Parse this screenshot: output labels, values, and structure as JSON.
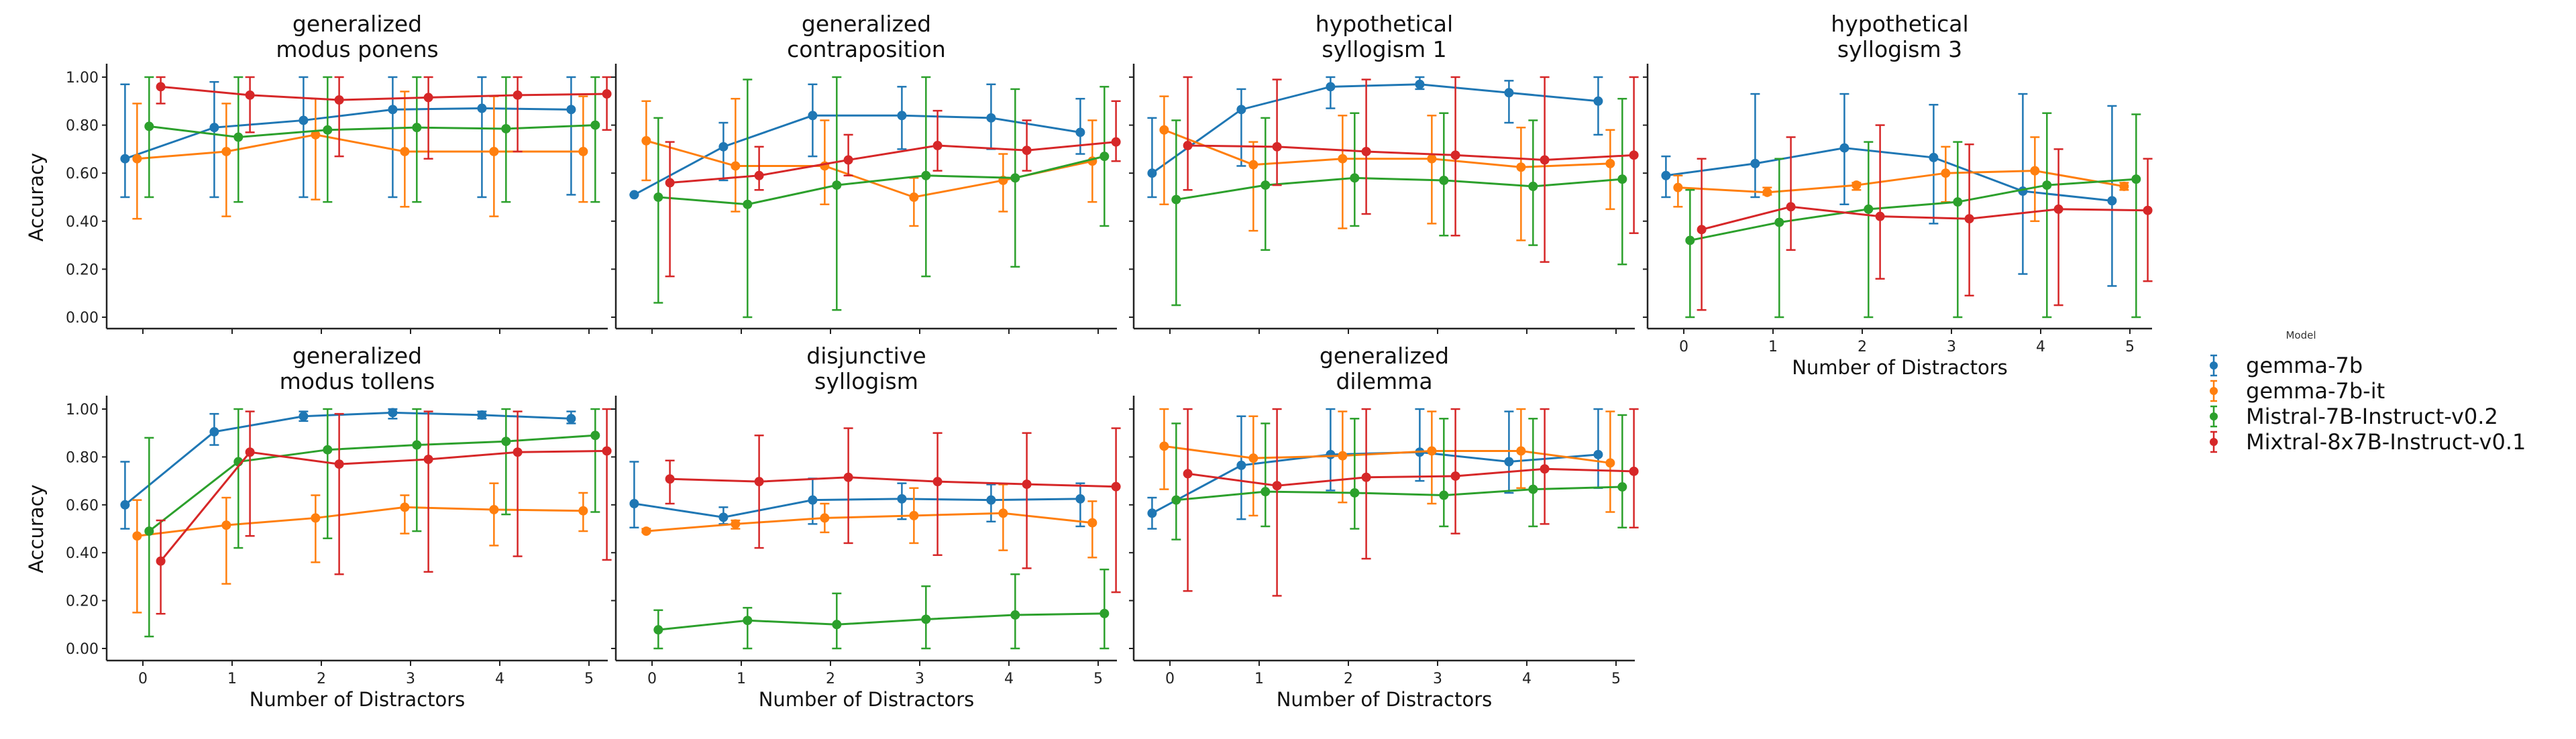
{
  "chart_data": {
    "type": "line",
    "subplots_layout": "2 rows x 4 columns, shared axes",
    "xlabel": "Number of Distractors",
    "ylabel": "Accuracy",
    "x": [
      0,
      1,
      2,
      3,
      4,
      5
    ],
    "xticks": [
      "0",
      "1",
      "2",
      "3",
      "4",
      "5"
    ],
    "yticks": [
      "0.00",
      "0.20",
      "0.40",
      "0.60",
      "0.80",
      "1.00"
    ],
    "ylim": [
      0,
      1
    ],
    "grid": false,
    "error_bars": true,
    "legend": {
      "title": "Model",
      "placement": "right",
      "entries": [
        {
          "name": "gemma-7b",
          "color": "#1f77b4"
        },
        {
          "name": "gemma-7b-it",
          "color": "#ff7f0e"
        },
        {
          "name": "Mistral-7B-Instruct-v0.2",
          "color": "#2ca02c"
        },
        {
          "name": "Mixtral-8x7B-Instruct-v0.1",
          "color": "#d62728"
        }
      ]
    },
    "panels": [
      {
        "title": [
          "generalized",
          "modus ponens"
        ],
        "series": [
          {
            "name": "gemma-7b",
            "mean": [
              0.66,
              0.79,
              0.82,
              0.865,
              0.87,
              0.865
            ],
            "low": [
              0.5,
              0.5,
              0.5,
              0.5,
              0.5,
              0.51
            ],
            "high": [
              0.97,
              0.98,
              1.0,
              1.0,
              1.0,
              1.0
            ]
          },
          {
            "name": "gemma-7b-it",
            "mean": [
              0.66,
              0.69,
              0.76,
              0.69,
              0.69,
              0.69
            ],
            "low": [
              0.41,
              0.42,
              0.49,
              0.46,
              0.42,
              0.48
            ],
            "high": [
              0.89,
              0.89,
              0.91,
              0.94,
              0.92,
              0.92
            ]
          },
          {
            "name": "Mistral-7B-Instruct-v0.2",
            "mean": [
              0.795,
              0.75,
              0.78,
              0.79,
              0.785,
              0.8
            ],
            "low": [
              0.5,
              0.48,
              0.48,
              0.48,
              0.48,
              0.48
            ],
            "high": [
              1.0,
              1.0,
              1.0,
              1.0,
              1.0,
              1.0
            ]
          },
          {
            "name": "Mixtral-8x7B-Instruct-v0.1",
            "mean": [
              0.96,
              0.925,
              0.905,
              0.915,
              0.925,
              0.93
            ],
            "low": [
              0.89,
              0.77,
              0.67,
              0.66,
              0.69,
              0.78
            ],
            "high": [
              1.0,
              1.0,
              1.0,
              1.0,
              1.0,
              1.0
            ]
          }
        ]
      },
      {
        "title": [
          "generalized",
          "contraposition"
        ],
        "series": [
          {
            "name": "gemma-7b",
            "mean": [
              0.51,
              0.71,
              0.84,
              0.84,
              0.83,
              0.77
            ],
            "low": [
              0.51,
              0.57,
              0.67,
              0.7,
              0.7,
              0.68
            ],
            "high": [
              0.51,
              0.81,
              0.97,
              0.96,
              0.97,
              0.91
            ]
          },
          {
            "name": "gemma-7b-it",
            "mean": [
              0.735,
              0.63,
              0.63,
              0.5,
              0.57,
              0.65
            ],
            "low": [
              0.57,
              0.44,
              0.47,
              0.38,
              0.44,
              0.48
            ],
            "high": [
              0.9,
              0.91,
              0.82,
              0.58,
              0.68,
              0.82
            ]
          },
          {
            "name": "Mistral-7B-Instruct-v0.2",
            "mean": [
              0.5,
              0.47,
              0.55,
              0.59,
              0.58,
              0.67
            ],
            "low": [
              0.06,
              0.0,
              0.03,
              0.17,
              0.21,
              0.38
            ],
            "high": [
              0.83,
              0.99,
              1.0,
              1.0,
              0.95,
              0.96
            ]
          },
          {
            "name": "Mixtral-8x7B-Instruct-v0.1",
            "mean": [
              0.56,
              0.59,
              0.655,
              0.715,
              0.695,
              0.73
            ],
            "low": [
              0.17,
              0.53,
              0.59,
              0.61,
              0.61,
              0.65
            ],
            "high": [
              0.73,
              0.71,
              0.76,
              0.86,
              0.82,
              0.9
            ]
          }
        ]
      },
      {
        "title": [
          "hypothetical",
          "syllogism 1"
        ],
        "series": [
          {
            "name": "gemma-7b",
            "mean": [
              0.6,
              0.865,
              0.96,
              0.97,
              0.935,
              0.9
            ],
            "low": [
              0.5,
              0.63,
              0.87,
              0.95,
              0.81,
              0.76
            ],
            "high": [
              0.83,
              0.95,
              1.0,
              1.0,
              0.985,
              1.0
            ]
          },
          {
            "name": "gemma-7b-it",
            "mean": [
              0.78,
              0.635,
              0.66,
              0.66,
              0.625,
              0.64
            ],
            "low": [
              0.47,
              0.36,
              0.37,
              0.39,
              0.32,
              0.45
            ],
            "high": [
              0.92,
              0.73,
              0.84,
              0.84,
              0.79,
              0.78
            ]
          },
          {
            "name": "Mistral-7B-Instruct-v0.2",
            "mean": [
              0.49,
              0.55,
              0.58,
              0.57,
              0.545,
              0.575
            ],
            "low": [
              0.05,
              0.28,
              0.38,
              0.34,
              0.3,
              0.22
            ],
            "high": [
              0.82,
              0.83,
              0.85,
              0.85,
              0.82,
              0.91
            ]
          },
          {
            "name": "Mixtral-8x7B-Instruct-v0.1",
            "mean": [
              0.715,
              0.71,
              0.69,
              0.675,
              0.655,
              0.675
            ],
            "low": [
              0.53,
              0.55,
              0.43,
              0.34,
              0.23,
              0.35
            ],
            "high": [
              1.0,
              0.99,
              0.99,
              1.0,
              1.0,
              1.0
            ]
          }
        ]
      },
      {
        "title": [
          "hypothetical",
          "syllogism 3"
        ],
        "series": [
          {
            "name": "gemma-7b",
            "mean": [
              0.59,
              0.64,
              0.705,
              0.665,
              0.525,
              0.485
            ],
            "low": [
              0.5,
              0.5,
              0.47,
              0.39,
              0.18,
              0.13
            ],
            "high": [
              0.67,
              0.93,
              0.93,
              0.885,
              0.93,
              0.88
            ]
          },
          {
            "name": "gemma-7b-it",
            "mean": [
              0.54,
              0.52,
              0.55,
              0.6,
              0.61,
              0.545
            ],
            "low": [
              0.46,
              0.51,
              0.53,
              0.48,
              0.4,
              0.53
            ],
            "high": [
              0.59,
              0.54,
              0.56,
              0.71,
              0.75,
              0.56
            ]
          },
          {
            "name": "Mistral-7B-Instruct-v0.2",
            "mean": [
              0.32,
              0.395,
              0.45,
              0.48,
              0.55,
              0.575
            ],
            "low": [
              0.0,
              0.0,
              0.0,
              0.0,
              0.0,
              0.0
            ],
            "high": [
              0.53,
              0.66,
              0.73,
              0.73,
              0.85,
              0.845
            ]
          },
          {
            "name": "Mixtral-8x7B-Instruct-v0.1",
            "mean": [
              0.365,
              0.46,
              0.42,
              0.41,
              0.45,
              0.445
            ],
            "low": [
              0.03,
              0.28,
              0.16,
              0.09,
              0.05,
              0.15
            ],
            "high": [
              0.66,
              0.75,
              0.8,
              0.72,
              0.7,
              0.66
            ]
          }
        ]
      },
      {
        "title": [
          "generalized",
          "modus tollens"
        ],
        "series": [
          {
            "name": "gemma-7b",
            "mean": [
              0.6,
              0.905,
              0.97,
              0.985,
              0.975,
              0.96
            ],
            "low": [
              0.5,
              0.85,
              0.95,
              0.96,
              0.96,
              0.94
            ],
            "high": [
              0.78,
              0.98,
              0.99,
              1.0,
              0.99,
              0.99
            ]
          },
          {
            "name": "gemma-7b-it",
            "mean": [
              0.47,
              0.515,
              0.545,
              0.59,
              0.58,
              0.575
            ],
            "low": [
              0.15,
              0.27,
              0.36,
              0.48,
              0.43,
              0.49
            ],
            "high": [
              0.62,
              0.63,
              0.64,
              0.64,
              0.69,
              0.65
            ]
          },
          {
            "name": "Mistral-7B-Instruct-v0.2",
            "mean": [
              0.49,
              0.78,
              0.83,
              0.85,
              0.865,
              0.89
            ],
            "low": [
              0.05,
              0.42,
              0.46,
              0.49,
              0.56,
              0.57
            ],
            "high": [
              0.88,
              1.0,
              1.0,
              1.0,
              1.0,
              1.0
            ]
          },
          {
            "name": "Mixtral-8x7B-Instruct-v0.1",
            "mean": [
              0.365,
              0.82,
              0.77,
              0.79,
              0.82,
              0.825
            ],
            "low": [
              0.145,
              0.47,
              0.31,
              0.32,
              0.385,
              0.37
            ],
            "high": [
              0.535,
              0.99,
              0.98,
              0.99,
              0.99,
              1.0
            ]
          }
        ]
      },
      {
        "title": [
          "disjunctive",
          "syllogism"
        ],
        "series": [
          {
            "name": "gemma-7b",
            "mean": [
              0.605,
              0.548,
              0.62,
              0.625,
              0.62,
              0.625
            ],
            "low": [
              0.505,
              0.52,
              0.52,
              0.54,
              0.53,
              0.51
            ],
            "high": [
              0.78,
              0.59,
              0.71,
              0.69,
              0.685,
              0.69
            ]
          },
          {
            "name": "gemma-7b-it",
            "mean": [
              0.49,
              0.52,
              0.545,
              0.555,
              0.565,
              0.525
            ],
            "low": [
              0.485,
              0.5,
              0.485,
              0.44,
              0.41,
              0.38
            ],
            "high": [
              0.5,
              0.535,
              0.605,
              0.67,
              0.685,
              0.615
            ]
          },
          {
            "name": "Mistral-7B-Instruct-v0.2",
            "mean": [
              0.078,
              0.117,
              0.1,
              0.122,
              0.14,
              0.146
            ],
            "low": [
              0.0,
              0.0,
              0.0,
              0.0,
              0.0,
              0.0
            ],
            "high": [
              0.16,
              0.17,
              0.23,
              0.26,
              0.31,
              0.33
            ]
          },
          {
            "name": "Mixtral-8x7B-Instruct-v0.1",
            "mean": [
              0.708,
              0.697,
              0.715,
              0.697,
              0.686,
              0.676
            ],
            "low": [
              0.605,
              0.42,
              0.44,
              0.39,
              0.335,
              0.235
            ],
            "high": [
              0.785,
              0.89,
              0.92,
              0.9,
              0.9,
              0.92
            ]
          }
        ]
      },
      {
        "title": [
          "generalized",
          "dilemma"
        ],
        "series": [
          {
            "name": "gemma-7b",
            "mean": [
              0.565,
              0.765,
              0.81,
              0.82,
              0.78,
              0.81
            ],
            "low": [
              0.5,
              0.54,
              0.66,
              0.7,
              0.65,
              0.67
            ],
            "high": [
              0.63,
              0.97,
              1.0,
              1.0,
              0.99,
              1.0
            ]
          },
          {
            "name": "gemma-7b-it",
            "mean": [
              0.845,
              0.795,
              0.805,
              0.825,
              0.825,
              0.775
            ],
            "low": [
              0.665,
              0.555,
              0.61,
              0.605,
              0.67,
              0.57
            ],
            "high": [
              1.0,
              0.97,
              0.99,
              0.99,
              1.0,
              0.99
            ]
          },
          {
            "name": "Mistral-7B-Instruct-v0.2",
            "mean": [
              0.62,
              0.655,
              0.65,
              0.64,
              0.665,
              0.675
            ],
            "low": [
              0.455,
              0.51,
              0.5,
              0.51,
              0.51,
              0.505
            ],
            "high": [
              0.94,
              0.94,
              0.96,
              0.96,
              0.96,
              0.975
            ]
          },
          {
            "name": "Mixtral-8x7B-Instruct-v0.1",
            "mean": [
              0.73,
              0.68,
              0.715,
              0.72,
              0.75,
              0.74
            ],
            "low": [
              0.24,
              0.22,
              0.375,
              0.48,
              0.52,
              0.505
            ],
            "high": [
              1.0,
              1.0,
              1.0,
              1.0,
              1.0,
              1.0
            ]
          }
        ]
      }
    ]
  }
}
